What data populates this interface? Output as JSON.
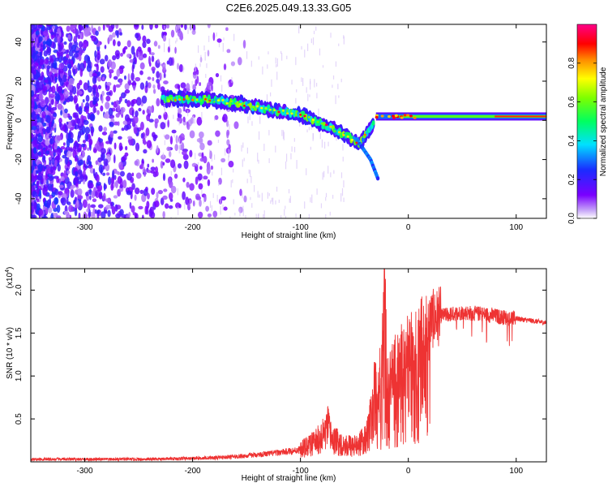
{
  "page_title": "C2E6.2025.049.13.33.G05",
  "chart_data": [
    {
      "type": "heatmap",
      "title": "C2E6.2025.049.13.33.G05",
      "xlabel": "Height of straight line (km)",
      "ylabel": "Frequency (Hz)",
      "xlim": [
        -350,
        128
      ],
      "ylim": [
        -50,
        49
      ],
      "xticks": [
        -300,
        -200,
        -100,
        0,
        100
      ],
      "yticks": [
        -40,
        -20,
        0,
        20,
        40
      ],
      "colorbar": {
        "label": "Normalized spectral amplitude",
        "range": [
          0,
          1
        ],
        "ticks": [
          "0.0",
          "0.2",
          "0.4",
          "0.6",
          "0.8"
        ],
        "colormap": "rainbow (white-violet-blue-cyan-green-yellow-red-magenta)"
      },
      "ridge": {
        "description_points": [
          {
            "x": -225,
            "y": 11
          },
          {
            "x": -200,
            "y": 11
          },
          {
            "x": -175,
            "y": 10
          },
          {
            "x": -150,
            "y": 8
          },
          {
            "x": -125,
            "y": 5
          },
          {
            "x": -100,
            "y": 3
          },
          {
            "x": -80,
            "y": -2
          },
          {
            "x": -60,
            "y": -7
          },
          {
            "x": -45,
            "y": -12
          },
          {
            "x": -30,
            "y": 0
          },
          {
            "x": 0,
            "y": 2
          },
          {
            "x": 50,
            "y": 2
          },
          {
            "x": 128,
            "y": 2
          }
        ],
        "secondary_branch": [
          {
            "x": -45,
            "y": -12
          },
          {
            "x": -35,
            "y": -20
          },
          {
            "x": -28,
            "y": -30
          }
        ]
      },
      "grid": false
    },
    {
      "type": "line",
      "xlabel": "Height of straight line (km)",
      "ylabel": "SNR (10 * v/v)",
      "y_multiplier": "(x10^4)",
      "y_multiplier_base": "(x10",
      "y_multiplier_exp": "4",
      "xlim": [
        -350,
        128
      ],
      "ylim": [
        0,
        2.25
      ],
      "xticks": [
        -300,
        -200,
        -100,
        0,
        100
      ],
      "yticks": [
        "0.5",
        "1.0",
        "1.5",
        "2.0"
      ],
      "series": [
        {
          "color": "#ee3333",
          "x": [
            -350,
            -300,
            -250,
            -200,
            -175,
            -150,
            -125,
            -100,
            -90,
            -80,
            -75,
            -70,
            -60,
            -50,
            -40,
            -35,
            -30,
            -25,
            -22,
            -20,
            -15,
            -10,
            0,
            10,
            20,
            30,
            40,
            50,
            60,
            70,
            80,
            90,
            100,
            110,
            128
          ],
          "values": [
            0.03,
            0.03,
            0.03,
            0.04,
            0.05,
            0.07,
            0.1,
            0.14,
            0.2,
            0.28,
            0.4,
            0.25,
            0.2,
            0.18,
            0.25,
            0.45,
            0.8,
            1.05,
            2.3,
            1.1,
            1.05,
            1.2,
            1.4,
            1.55,
            1.65,
            1.7,
            1.72,
            1.74,
            1.73,
            1.72,
            1.7,
            1.68,
            1.67,
            1.65,
            1.62
          ]
        }
      ],
      "grid": false
    }
  ]
}
